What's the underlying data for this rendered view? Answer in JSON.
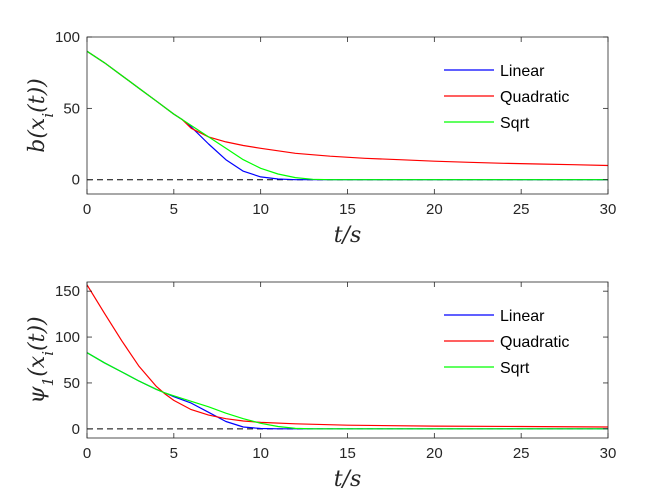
{
  "chart_data": [
    {
      "type": "line",
      "xlabel": "t/s",
      "ylabel": "b(x_i(t))",
      "xlim": [
        0,
        30
      ],
      "ylim": [
        -10,
        100
      ],
      "xticks": [
        0,
        5,
        10,
        15,
        20,
        25,
        30
      ],
      "yticks": [
        0,
        50,
        100
      ],
      "grid": false,
      "legend_position": "top-right",
      "reference_line": {
        "y": 0,
        "style": "dashed",
        "color": "#000000"
      },
      "series": [
        {
          "name": "Linear",
          "color": "#0000ff",
          "x": [
            0,
            1,
            2,
            3,
            4,
            5,
            5.5,
            6,
            7,
            8,
            9,
            10,
            11,
            12,
            13,
            30
          ],
          "y": [
            90,
            82,
            73,
            64,
            55,
            46,
            42,
            37,
            25,
            14,
            6,
            2,
            0.5,
            0,
            0,
            0
          ]
        },
        {
          "name": "Quadratic",
          "color": "#ff0000",
          "x": [
            0,
            1,
            2,
            3,
            4,
            5,
            5.5,
            6,
            7,
            8,
            9,
            10,
            12,
            14,
            16,
            18,
            20,
            22,
            24,
            26,
            28,
            30
          ],
          "y": [
            90,
            82,
            73,
            64,
            55,
            46,
            42,
            36,
            30,
            26.5,
            24,
            22,
            18.5,
            16.5,
            15,
            14,
            13,
            12.2,
            11.5,
            11,
            10.5,
            10
          ]
        },
        {
          "name": "Sqrt",
          "color": "#00ff00",
          "x": [
            0,
            1,
            2,
            3,
            4,
            5,
            5.5,
            6,
            7,
            8,
            9,
            10,
            11,
            12,
            13,
            14,
            30
          ],
          "y": [
            90,
            82,
            73,
            64,
            55,
            46,
            42,
            38,
            30,
            22,
            14,
            8,
            4,
            1.5,
            0.3,
            0,
            0
          ]
        }
      ]
    },
    {
      "type": "line",
      "xlabel": "t/s",
      "ylabel": "ψ_1(x_i(t))",
      "xlim": [
        0,
        30
      ],
      "ylim": [
        -10,
        160
      ],
      "xticks": [
        0,
        5,
        10,
        15,
        20,
        25,
        30
      ],
      "yticks": [
        0,
        50,
        100,
        150
      ],
      "grid": false,
      "legend_position": "top-right",
      "reference_line": {
        "y": 0,
        "style": "dashed",
        "color": "#000000"
      },
      "series": [
        {
          "name": "Linear",
          "color": "#0000ff",
          "x": [
            0,
            1,
            2,
            3,
            4,
            4.5,
            5,
            6,
            7,
            8,
            9,
            10,
            11,
            30
          ],
          "y": [
            83,
            72,
            62,
            52,
            43,
            39,
            35,
            28,
            18,
            8,
            2,
            0.3,
            0,
            0
          ]
        },
        {
          "name": "Quadratic",
          "color": "#ff0000",
          "x": [
            0,
            1,
            2,
            3,
            4,
            4.5,
            5,
            6,
            7,
            8,
            9,
            10,
            12,
            15,
            20,
            25,
            30
          ],
          "y": [
            157,
            126,
            96,
            68,
            46,
            38,
            31,
            21,
            15,
            11,
            8.5,
            7,
            5.5,
            4,
            3,
            2.5,
            2
          ]
        },
        {
          "name": "Sqrt",
          "color": "#00ff00",
          "x": [
            0,
            1,
            2,
            3,
            4,
            4.5,
            5,
            6,
            7,
            8,
            9,
            10,
            11,
            12,
            13,
            30
          ],
          "y": [
            83,
            72,
            62,
            52,
            43,
            39,
            36,
            30,
            24,
            17,
            11,
            6,
            2.5,
            0.5,
            0,
            0
          ]
        }
      ]
    }
  ]
}
